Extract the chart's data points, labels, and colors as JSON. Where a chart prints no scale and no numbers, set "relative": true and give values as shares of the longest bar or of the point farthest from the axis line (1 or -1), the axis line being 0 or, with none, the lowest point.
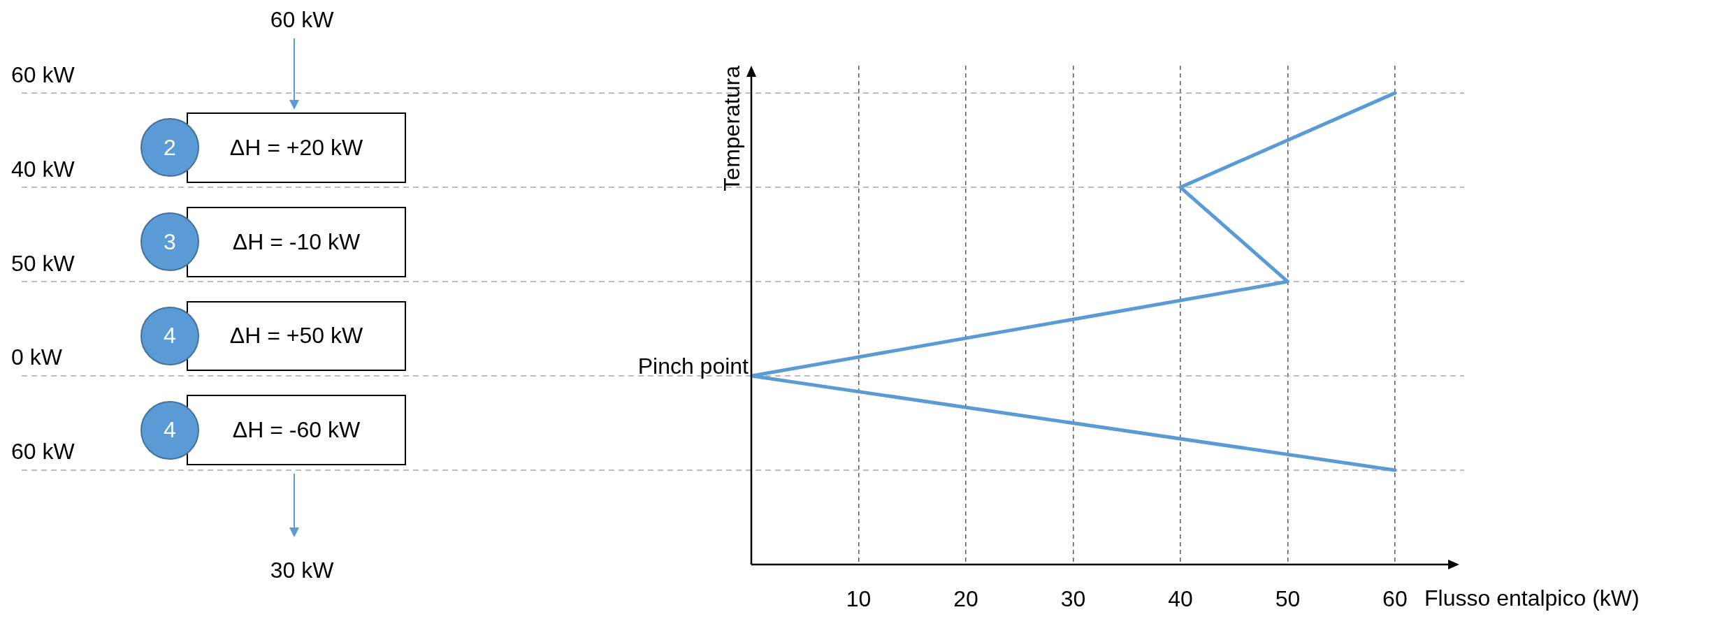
{
  "chart_data": [
    {
      "type": "other",
      "annotations": [
        "60 kW",
        "60 kW",
        "40 kW",
        "50 kW",
        "0 kW",
        "60 kW",
        "2",
        "ΔH = +20 kW",
        "3",
        "ΔH = -10 kW",
        "4",
        "ΔH = +50 kW",
        "4",
        "ΔH = -60 kW",
        "30 kW"
      ]
    },
    {
      "type": "line",
      "xlabel": "Flusso entalpico (kW)",
      "ylabel": "Temperatura",
      "relative": true,
      "x": [
        60,
        40,
        50,
        0,
        60
      ],
      "series": [
        {
          "color": "#5b9bd5",
          "values": [
            1,
            0.8,
            0.6,
            0.4,
            0.2
          ]
        }
      ],
      "xlim": [
        0,
        66
      ],
      "xticks": [
        10,
        20,
        30,
        40,
        50,
        60
      ],
      "grid": "x",
      "legend": false,
      "tick_labels": "x",
      "marker": "none",
      "line_style": "solid",
      "ref_lines": [
        {
          "axis": "y",
          "value": 1,
          "color": "#a6a6a6",
          "line_style": "dashed"
        },
        {
          "axis": "y",
          "value": 0.8,
          "color": "#a6a6a6",
          "line_style": "dashed"
        },
        {
          "axis": "y",
          "value": 0.6,
          "color": "#a6a6a6",
          "line_style": "dashed"
        },
        {
          "axis": "y",
          "value": 0.4,
          "color": "#a6a6a6",
          "line_style": "dashed"
        },
        {
          "axis": "y",
          "value": 0.2,
          "color": "#a6a6a6",
          "line_style": "dashed"
        }
      ],
      "annotations": [
        {
          "text": "Pinch point",
          "x": 0,
          "y": 0.4
        }
      ]
    }
  ]
}
